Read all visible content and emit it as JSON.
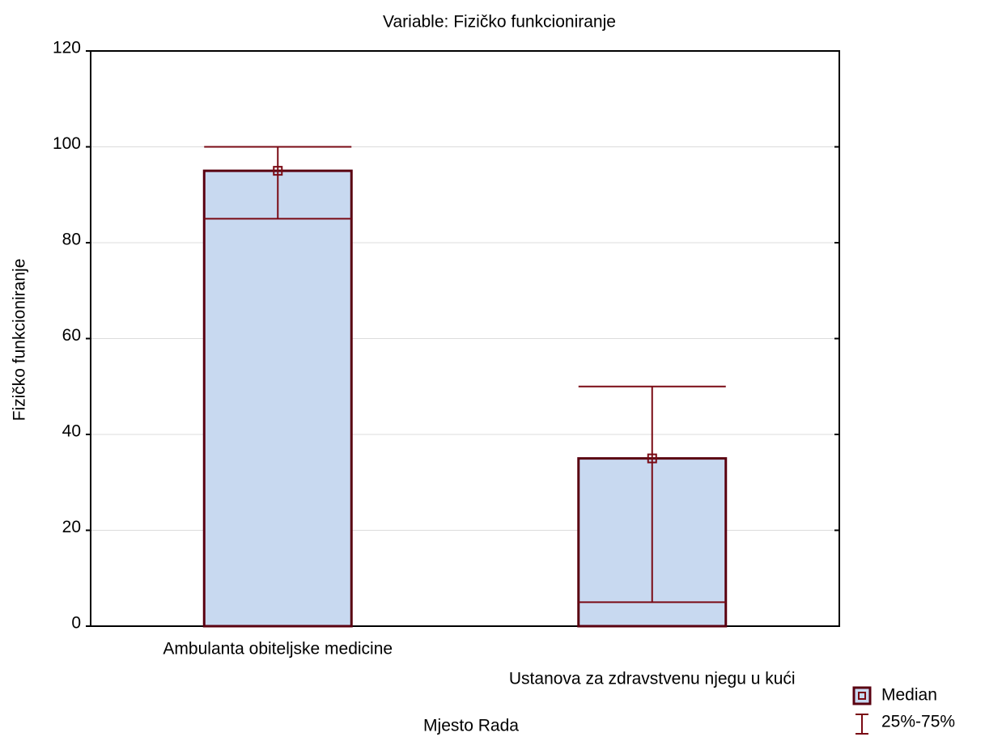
{
  "chart_data": {
    "type": "median_range",
    "title": "Variable: Fizičko funkcioniranje",
    "xlabel": "Mjesto Rada",
    "ylabel": "Fizičko funkcioniranje",
    "categories": [
      "Ambulanta obiteljske medicine",
      "Ustanova za zdravstvenu njegu u kući"
    ],
    "medians": [
      95,
      35
    ],
    "q1": [
      85,
      5
    ],
    "q3": [
      100,
      50
    ],
    "ylim": [
      0,
      120
    ],
    "yticks": [
      0,
      20,
      40,
      60,
      80,
      100,
      120
    ],
    "grid": true,
    "box_color": "#c8d9f0",
    "line_color": "#7a0a14",
    "legend": {
      "position": "bottom-right",
      "entries": [
        "Median",
        "25%-75%"
      ]
    }
  }
}
